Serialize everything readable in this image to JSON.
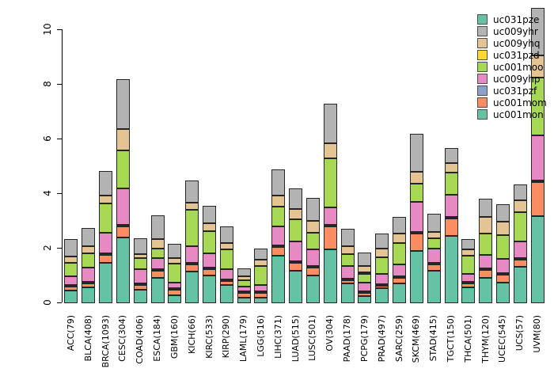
{
  "chart_data": {
    "type": "bar",
    "stacked": true,
    "title": "",
    "xlabel": "",
    "ylabel": "",
    "ylim": [
      0,
      10
    ],
    "yticks": [
      "0",
      "2",
      "4",
      "6",
      "8",
      "10"
    ],
    "grid": false,
    "legend_position": "top-right",
    "legend_order_top_to_bottom": [
      "uc031pze",
      "uc009yhr",
      "uc009yhq",
      "uc031pzd",
      "uc001moo",
      "uc009yhp",
      "uc031pzf",
      "uc001mom",
      "uc001mon"
    ],
    "categories": [
      "ACC(79)",
      "BLCA(408)",
      "BRCA(1093)",
      "CESC(304)",
      "COAD(406)",
      "ESCA(184)",
      "GBM(160)",
      "KICH(66)",
      "KIRC(533)",
      "KIRP(290)",
      "LAML(179)",
      "LGG(516)",
      "LIHC(371)",
      "LUAD(515)",
      "LUSC(501)",
      "OV(304)",
      "PAAD(178)",
      "PCPG(179)",
      "PRAD(497)",
      "SARC(259)",
      "SKCM(469)",
      "STAD(415)",
      "TGCT(150)",
      "THCA(501)",
      "THYM(120)",
      "UCEC(545)",
      "UCS(57)",
      "UVM(80)"
    ],
    "series_bottom_to_top": [
      {
        "name": "uc001mon",
        "color": "#66C2A5",
        "values": [
          0.45,
          0.57,
          1.49,
          2.41,
          0.49,
          0.93,
          0.28,
          1.15,
          1.01,
          0.66,
          0.2,
          0.2,
          1.73,
          1.2,
          1.01,
          1.97,
          0.72,
          0.25,
          0.55,
          0.72,
          1.91,
          1.19,
          2.46,
          0.57,
          0.94,
          0.74,
          1.33,
          3.19
        ]
      },
      {
        "name": "uc001mom",
        "color": "#FC8D62",
        "values": [
          0.14,
          0.15,
          0.28,
          0.4,
          0.18,
          0.26,
          0.2,
          0.27,
          0.24,
          0.14,
          0.16,
          0.18,
          0.31,
          0.29,
          0.29,
          0.83,
          0.12,
          0.12,
          0.1,
          0.19,
          0.63,
          0.24,
          0.63,
          0.14,
          0.29,
          0.28,
          0.26,
          1.24
        ]
      },
      {
        "name": "uc031pzf",
        "color": "#8DA0CB",
        "values": [
          0.02,
          0.02,
          0.02,
          0.02,
          0.02,
          0.02,
          0.02,
          0.02,
          0.02,
          0.02,
          0.02,
          0.02,
          0.02,
          0.02,
          0.02,
          0.02,
          0.02,
          0.02,
          0.02,
          0.02,
          0.02,
          0.02,
          0.02,
          0.02,
          0.02,
          0.02,
          0.02,
          0.03
        ]
      },
      {
        "name": "uc009yhp",
        "color": "#E78AC3",
        "values": [
          0.32,
          0.53,
          0.74,
          1.33,
          0.53,
          0.42,
          0.2,
          0.6,
          0.53,
          0.39,
          0.16,
          0.24,
          0.7,
          0.73,
          0.61,
          0.63,
          0.46,
          0.33,
          0.39,
          0.44,
          1.11,
          0.53,
          0.82,
          0.29,
          0.49,
          0.52,
          0.61,
          1.65
        ]
      },
      {
        "name": "uc001moo",
        "color": "#A6D854",
        "values": [
          0.5,
          0.52,
          1.06,
          1.39,
          0.4,
          0.35,
          0.69,
          1.34,
          0.82,
          0.72,
          0.22,
          0.7,
          0.73,
          0.82,
          0.6,
          1.81,
          0.44,
          0.33,
          0.6,
          0.77,
          0.68,
          0.39,
          0.82,
          0.68,
          0.77,
          0.88,
          1.06,
          2.13
        ]
      },
      {
        "name": "uc031pzd",
        "color": "#FFD92F",
        "values": [
          0.01,
          0.01,
          0.01,
          0.01,
          0.01,
          0.01,
          0.01,
          0.01,
          0.01,
          0.01,
          0.01,
          0.01,
          0.01,
          0.01,
          0.01,
          0.01,
          0.01,
          0.06,
          0.01,
          0.01,
          0.01,
          0.01,
          0.01,
          0.01,
          0.01,
          0.01,
          0.01,
          0.01
        ]
      },
      {
        "name": "uc009yhq",
        "color": "#E5C494",
        "values": [
          0.23,
          0.27,
          0.29,
          0.79,
          0.15,
          0.35,
          0.19,
          0.26,
          0.29,
          0.24,
          0.14,
          0.23,
          0.4,
          0.39,
          0.43,
          0.54,
          0.29,
          0.24,
          0.32,
          0.34,
          0.44,
          0.24,
          0.34,
          0.22,
          0.6,
          0.5,
          0.43,
          0.82
        ]
      },
      {
        "name": "uc009yhr",
        "color": "#B3B3B3",
        "values": [
          0.63,
          0.68,
          0.91,
          1.82,
          0.57,
          0.86,
          0.51,
          0.8,
          0.63,
          0.62,
          0.29,
          0.42,
          0.95,
          0.74,
          0.83,
          1.44,
          0.64,
          0.5,
          0.56,
          0.61,
          1.4,
          0.68,
          0.55,
          0.37,
          0.68,
          0.65,
          0.58,
          1.74
        ]
      },
      {
        "name": "uc031pze",
        "color": "#66C2A5",
        "values": [
          0.01,
          0.01,
          0.01,
          0.01,
          0.01,
          0.01,
          0.01,
          0.01,
          0.01,
          0.01,
          0.01,
          0.01,
          0.01,
          0.01,
          0.01,
          0.01,
          0.01,
          0.01,
          0.01,
          0.01,
          0.01,
          0.01,
          0.01,
          0.01,
          0.01,
          0.01,
          0.01,
          0.01
        ]
      }
    ]
  },
  "layout_colors": {
    "axis": "#000000",
    "segment_border": "#262626",
    "background": "#ffffff"
  }
}
